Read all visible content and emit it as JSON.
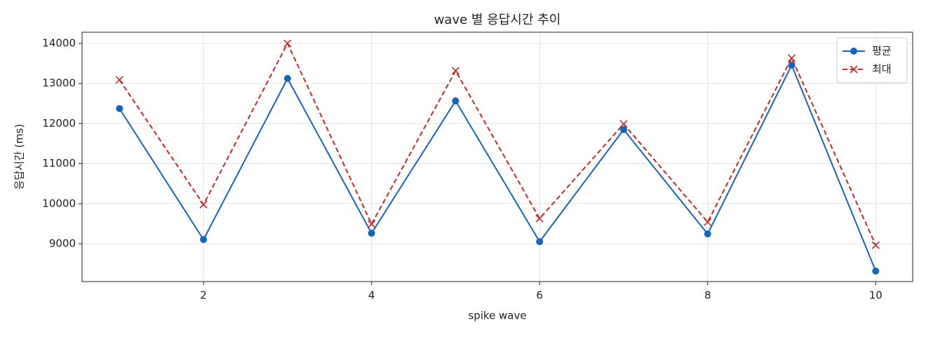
{
  "chart_data": {
    "type": "line",
    "title": "wave 별 응답시간 추이",
    "x_label": "spike wave",
    "y_label": "응답시간 (ms)",
    "x": [
      1,
      2,
      3,
      4,
      5,
      6,
      7,
      8,
      9,
      10
    ],
    "series": [
      {
        "name": "평균",
        "color": "#1565c0",
        "marker": "circle",
        "linestyle": "solid",
        "values": [
          12374,
          9105,
          13126,
          9262,
          12566,
          9052,
          11850,
          9245,
          13458,
          8318
        ]
      },
      {
        "name": "최대",
        "color": "#c62828",
        "marker": "x",
        "linestyle": "dashed",
        "values": [
          13091,
          9979,
          14000,
          9490,
          13318,
          9629,
          11990,
          9542,
          13633,
          8965
        ]
      }
    ],
    "xlim": [
      0.555,
      10.44
    ],
    "xticks": [
      2,
      4,
      6,
      8,
      10
    ],
    "ylim": [
      8056,
      14280
    ],
    "yticks": [
      9000,
      10000,
      11000,
      12000,
      13000,
      14000
    ],
    "grid": true,
    "legend": "upper right"
  }
}
